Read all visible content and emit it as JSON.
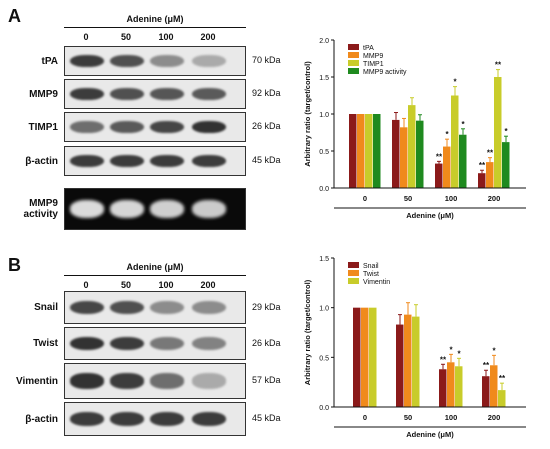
{
  "panels": [
    {
      "letter": "A",
      "blot": {
        "treatment_label": "Adenine (μM)",
        "lanes": [
          "0",
          "50",
          "100",
          "200"
        ],
        "rows": [
          {
            "label": "tPA",
            "kda": "70 kDa",
            "intensity": [
              0.85,
              0.75,
              0.45,
              0.3
            ],
            "dark_bg": false
          },
          {
            "label": "MMP9",
            "kda": "92 kDa",
            "intensity": [
              0.85,
              0.75,
              0.72,
              0.7
            ],
            "dark_bg": false
          },
          {
            "label": "TIMP1",
            "kda": "26 kDa",
            "intensity": [
              0.6,
              0.7,
              0.8,
              0.9
            ],
            "dark_bg": false
          },
          {
            "label": "β-actin",
            "kda": "45 kDa",
            "intensity": [
              0.85,
              0.85,
              0.85,
              0.85
            ],
            "dark_bg": false
          },
          {
            "label": "MMP9\nactivity",
            "kda": "",
            "intensity": [
              0.9,
              0.85,
              0.8,
              0.75
            ],
            "dark_bg": true
          }
        ]
      },
      "chart_data": {
        "type": "bar",
        "categories": [
          "0",
          "50",
          "100",
          "200"
        ],
        "xlabel": "Adenine (μM)",
        "ylabel": "Arbitrary ratio (target/control)",
        "ylim": [
          0,
          2.0
        ],
        "yticks": [
          "0.0",
          "0.5",
          "1.0",
          "1.5",
          "2.0"
        ],
        "legend_position": "top-left",
        "series": [
          {
            "name": "tPA",
            "color": "#8b1a1a",
            "values": [
              1.0,
              0.92,
              0.33,
              0.2
            ],
            "errors": [
              0,
              0.1,
              0.03,
              0.04
            ],
            "marks": [
              "",
              "",
              "**",
              "**"
            ]
          },
          {
            "name": "MMP9",
            "color": "#f08a1c",
            "values": [
              1.0,
              0.82,
              0.56,
              0.35
            ],
            "errors": [
              0,
              0.12,
              0.1,
              0.06
            ],
            "marks": [
              "",
              "",
              "*",
              "**"
            ]
          },
          {
            "name": "TIMP1",
            "color": "#c8cc2a",
            "values": [
              1.0,
              1.12,
              1.25,
              1.5
            ],
            "errors": [
              0,
              0.1,
              0.12,
              0.1
            ],
            "marks": [
              "",
              "",
              "*",
              "**"
            ]
          },
          {
            "name": "MMP9 activity",
            "color": "#1f8a1f",
            "values": [
              1.0,
              0.91,
              0.72,
              0.62
            ],
            "errors": [
              0,
              0.08,
              0.08,
              0.08
            ],
            "marks": [
              "",
              "",
              "*",
              "*"
            ]
          }
        ]
      }
    },
    {
      "letter": "B",
      "blot": {
        "treatment_label": "Adenine (μM)",
        "lanes": [
          "0",
          "50",
          "100",
          "200"
        ],
        "rows": [
          {
            "label": "Snail",
            "kda": "29 kDa",
            "intensity": [
              0.8,
              0.75,
              0.45,
              0.45
            ],
            "dark_bg": false
          },
          {
            "label": "Twist",
            "kda": "26 kDa",
            "intensity": [
              0.9,
              0.85,
              0.55,
              0.5
            ],
            "dark_bg": false
          },
          {
            "label": "Vimentin",
            "kda": "57 kDa",
            "intensity": [
              0.9,
              0.85,
              0.6,
              0.3
            ],
            "dark_bg": false
          },
          {
            "label": "β-actin",
            "kda": "45 kDa",
            "intensity": [
              0.85,
              0.85,
              0.85,
              0.85
            ],
            "dark_bg": false
          }
        ]
      },
      "chart_data": {
        "type": "bar",
        "categories": [
          "0",
          "50",
          "100",
          "200"
        ],
        "xlabel": "Adenine (μM)",
        "ylabel": "Arbitrary ratio (target/control)",
        "ylim": [
          0,
          1.5
        ],
        "yticks": [
          "0.0",
          "0.5",
          "1.0",
          "1.5"
        ],
        "legend_position": "top-left",
        "series": [
          {
            "name": "Snail",
            "color": "#8b1a1a",
            "values": [
              1.0,
              0.83,
              0.38,
              0.31
            ],
            "errors": [
              0,
              0.1,
              0.05,
              0.06
            ],
            "marks": [
              "",
              "",
              "**",
              "**"
            ]
          },
          {
            "name": "Twist",
            "color": "#f08a1c",
            "values": [
              1.0,
              0.93,
              0.45,
              0.42
            ],
            "errors": [
              0,
              0.12,
              0.08,
              0.1
            ],
            "marks": [
              "",
              "",
              "*",
              "*"
            ]
          },
          {
            "name": "Vimentin",
            "color": "#c8cc2a",
            "values": [
              1.0,
              0.91,
              0.41,
              0.17
            ],
            "errors": [
              0,
              0.12,
              0.08,
              0.07
            ],
            "marks": [
              "",
              "",
              "*",
              "**"
            ]
          }
        ]
      }
    }
  ]
}
